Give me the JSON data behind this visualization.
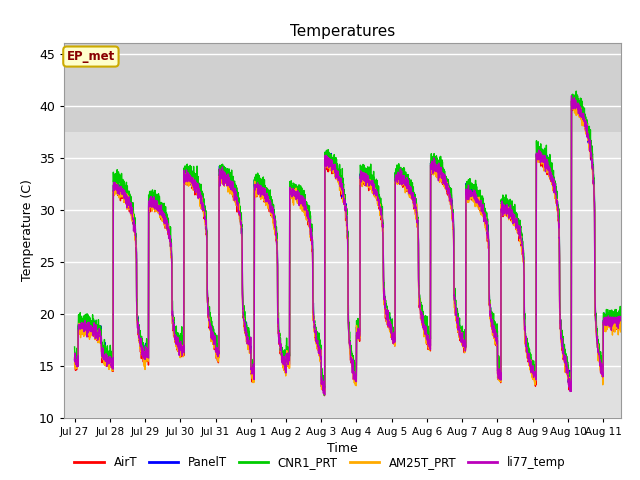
{
  "title": "Temperatures",
  "xlabel": "Time",
  "ylabel": "Temperature (C)",
  "ylim": [
    10,
    46
  ],
  "background_color": "#ffffff",
  "plot_bg_color": "#e0e0e0",
  "grid_color": "#ffffff",
  "annotation_text": "EP_met",
  "annotation_bg": "#ffffcc",
  "annotation_border": "#ccaa00",
  "annotation_text_color": "#880000",
  "series": [
    "AirT",
    "PanelT",
    "CNR1_PRT",
    "AM25T_PRT",
    "li77_temp"
  ],
  "colors": [
    "#ff0000",
    "#0000ff",
    "#00cc00",
    "#ffaa00",
    "#bb00bb"
  ],
  "x_tick_labels": [
    "Jul 27",
    "Jul 28",
    "Jul 29",
    "Jul 30",
    "Jul 31",
    "Aug 1",
    "Aug 2",
    "Aug 3",
    "Aug 4",
    "Aug 5",
    "Aug 6",
    "Aug 7",
    "Aug 8",
    "Aug 9",
    "Aug 10",
    "Aug 11"
  ],
  "x_tick_positions": [
    0,
    1,
    2,
    3,
    4,
    5,
    6,
    7,
    8,
    9,
    10,
    11,
    12,
    13,
    14,
    15
  ],
  "shaded_ymin": 37.5,
  "shaded_ymax": 46,
  "shaded_color": "#d0d0d0",
  "day_peaks": [
    18.5,
    32.0,
    30.5,
    33.0,
    33.0,
    32.0,
    31.5,
    34.5,
    33.0,
    33.0,
    34.0,
    31.5,
    30.0,
    35.0,
    40.0,
    19.0
  ],
  "day_troughs": [
    15.0,
    14.0,
    15.0,
    15.5,
    15.0,
    13.0,
    14.5,
    11.5,
    17.0,
    16.5,
    16.0,
    16.0,
    13.0,
    12.5,
    11.5,
    19.0
  ],
  "peak_time": 0.42,
  "trough_time": 0.1,
  "sharpness": 3.5
}
